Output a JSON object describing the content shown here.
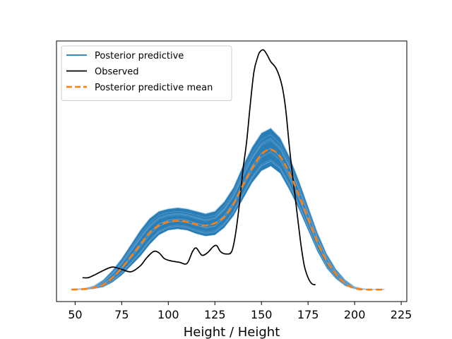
{
  "chart_data": {
    "type": "line",
    "title": "",
    "xlabel": "Height / Height",
    "ylabel": "",
    "xlim": [
      40,
      228
    ],
    "ylim": [
      0,
      1
    ],
    "y_ticks_visible": false,
    "grid": false,
    "x_ticks": [
      50,
      75,
      100,
      125,
      150,
      175,
      200,
      225
    ],
    "legend": {
      "placement": "top-left",
      "entries": [
        {
          "label": "Posterior predictive",
          "color": "#1f77b4",
          "style": "solid"
        },
        {
          "label": "Observed",
          "color": "#000000",
          "style": "solid"
        },
        {
          "label": "Posterior predictive mean",
          "color": "#ff7f0e",
          "style": "dashed"
        }
      ]
    },
    "series": [
      {
        "name": "Posterior predictive",
        "color": "#1f77b4",
        "kind": "band",
        "x": [
          48,
          55,
          60,
          65,
          70,
          75,
          80,
          85,
          90,
          95,
          100,
          105,
          110,
          115,
          120,
          125,
          130,
          135,
          140,
          145,
          150,
          155,
          160,
          165,
          170,
          175,
          180,
          185,
          190,
          195,
          200,
          205,
          210,
          216
        ],
        "lower": [
          0.0,
          0.0,
          0.003,
          0.01,
          0.03,
          0.06,
          0.1,
          0.14,
          0.19,
          0.23,
          0.25,
          0.255,
          0.25,
          0.235,
          0.225,
          0.23,
          0.26,
          0.31,
          0.38,
          0.45,
          0.5,
          0.52,
          0.49,
          0.42,
          0.34,
          0.25,
          0.16,
          0.09,
          0.045,
          0.015,
          0.003,
          0.0,
          0.0,
          0.0
        ],
        "upper": [
          0.0,
          0.005,
          0.015,
          0.04,
          0.08,
          0.13,
          0.19,
          0.25,
          0.3,
          0.33,
          0.34,
          0.345,
          0.34,
          0.33,
          0.32,
          0.33,
          0.37,
          0.43,
          0.52,
          0.6,
          0.66,
          0.68,
          0.64,
          0.56,
          0.46,
          0.35,
          0.24,
          0.15,
          0.085,
          0.04,
          0.012,
          0.003,
          0.0,
          0.0
        ]
      },
      {
        "name": "Observed",
        "color": "#000000",
        "kind": "line",
        "x": [
          54,
          57,
          60,
          65,
          70,
          75,
          80,
          85,
          88,
          92,
          95,
          98,
          102,
          106,
          110,
          113,
          115,
          118,
          121,
          124,
          126,
          128,
          131,
          134,
          136,
          138,
          140,
          142,
          144,
          146,
          148,
          149,
          151,
          153,
          155,
          158,
          161,
          163,
          165,
          167,
          169,
          171,
          173,
          175,
          177,
          179
        ],
        "y": [
          0.05,
          0.05,
          0.06,
          0.08,
          0.095,
          0.085,
          0.075,
          0.1,
          0.13,
          0.16,
          0.155,
          0.13,
          0.12,
          0.115,
          0.11,
          0.16,
          0.175,
          0.145,
          0.155,
          0.18,
          0.185,
          0.16,
          0.15,
          0.16,
          0.23,
          0.35,
          0.5,
          0.62,
          0.78,
          0.92,
          0.98,
          1.0,
          1.01,
          0.99,
          0.96,
          0.93,
          0.86,
          0.76,
          0.6,
          0.46,
          0.33,
          0.2,
          0.1,
          0.05,
          0.025,
          0.02
        ]
      },
      {
        "name": "Posterior predictive mean",
        "color": "#ff7f0e",
        "kind": "dashed-line",
        "x": [
          48,
          55,
          60,
          65,
          70,
          75,
          80,
          85,
          90,
          95,
          100,
          105,
          110,
          115,
          120,
          125,
          130,
          135,
          140,
          145,
          150,
          155,
          160,
          165,
          170,
          175,
          180,
          185,
          190,
          195,
          200,
          205,
          210,
          216
        ],
        "y": [
          0.0,
          0.002,
          0.008,
          0.02,
          0.05,
          0.09,
          0.14,
          0.19,
          0.24,
          0.27,
          0.285,
          0.29,
          0.285,
          0.275,
          0.27,
          0.28,
          0.305,
          0.36,
          0.44,
          0.51,
          0.57,
          0.59,
          0.56,
          0.49,
          0.4,
          0.3,
          0.2,
          0.12,
          0.065,
          0.025,
          0.005,
          0.0,
          0.0,
          0.0
        ]
      }
    ]
  }
}
